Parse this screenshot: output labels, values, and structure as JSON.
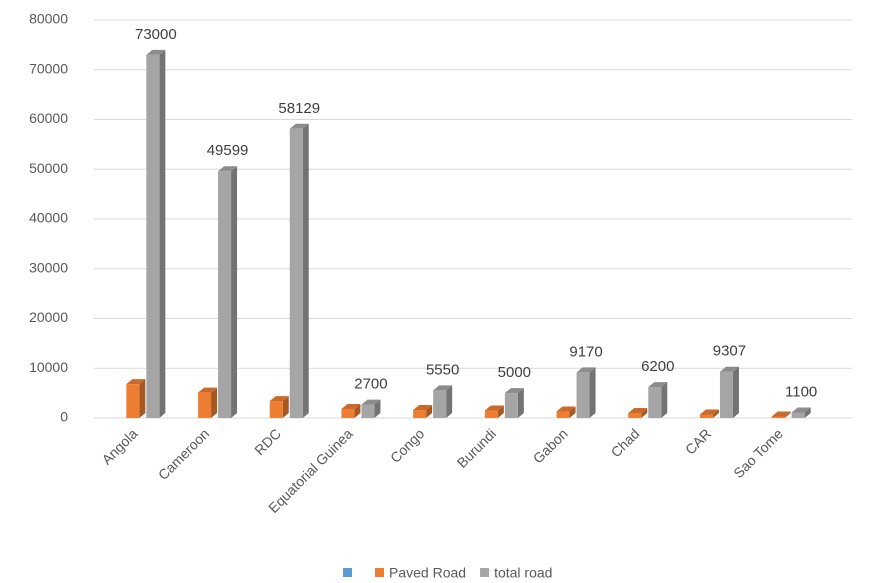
{
  "chart_data": {
    "type": "bar3d",
    "categories": [
      "Angola",
      "Cameroon",
      "RDC",
      "Equatorial Guinea",
      "Congo",
      "Burundi",
      "Gabon",
      "Chad",
      "CAR",
      "Sao Tome"
    ],
    "series": [
      {
        "name": null,
        "color": "#5b9bd5",
        "values": [
          null,
          null,
          null,
          null,
          null,
          null,
          null,
          null,
          null,
          null
        ]
      },
      {
        "name": "Paved Road",
        "color": "#ed7d31",
        "values": [
          6800,
          5100,
          3400,
          1800,
          1600,
          1500,
          1300,
          1000,
          700,
          300
        ]
      },
      {
        "name": "total road",
        "color": "#a5a5a5",
        "values": [
          73000,
          49599,
          58129,
          2700,
          5550,
          5000,
          9170,
          6200,
          9307,
          1100
        ]
      }
    ],
    "labeled_series": 2,
    "ylim": [
      0,
      80000
    ],
    "yticks": [
      0,
      10000,
      20000,
      30000,
      40000,
      50000,
      60000,
      70000,
      80000
    ],
    "grid": true
  }
}
